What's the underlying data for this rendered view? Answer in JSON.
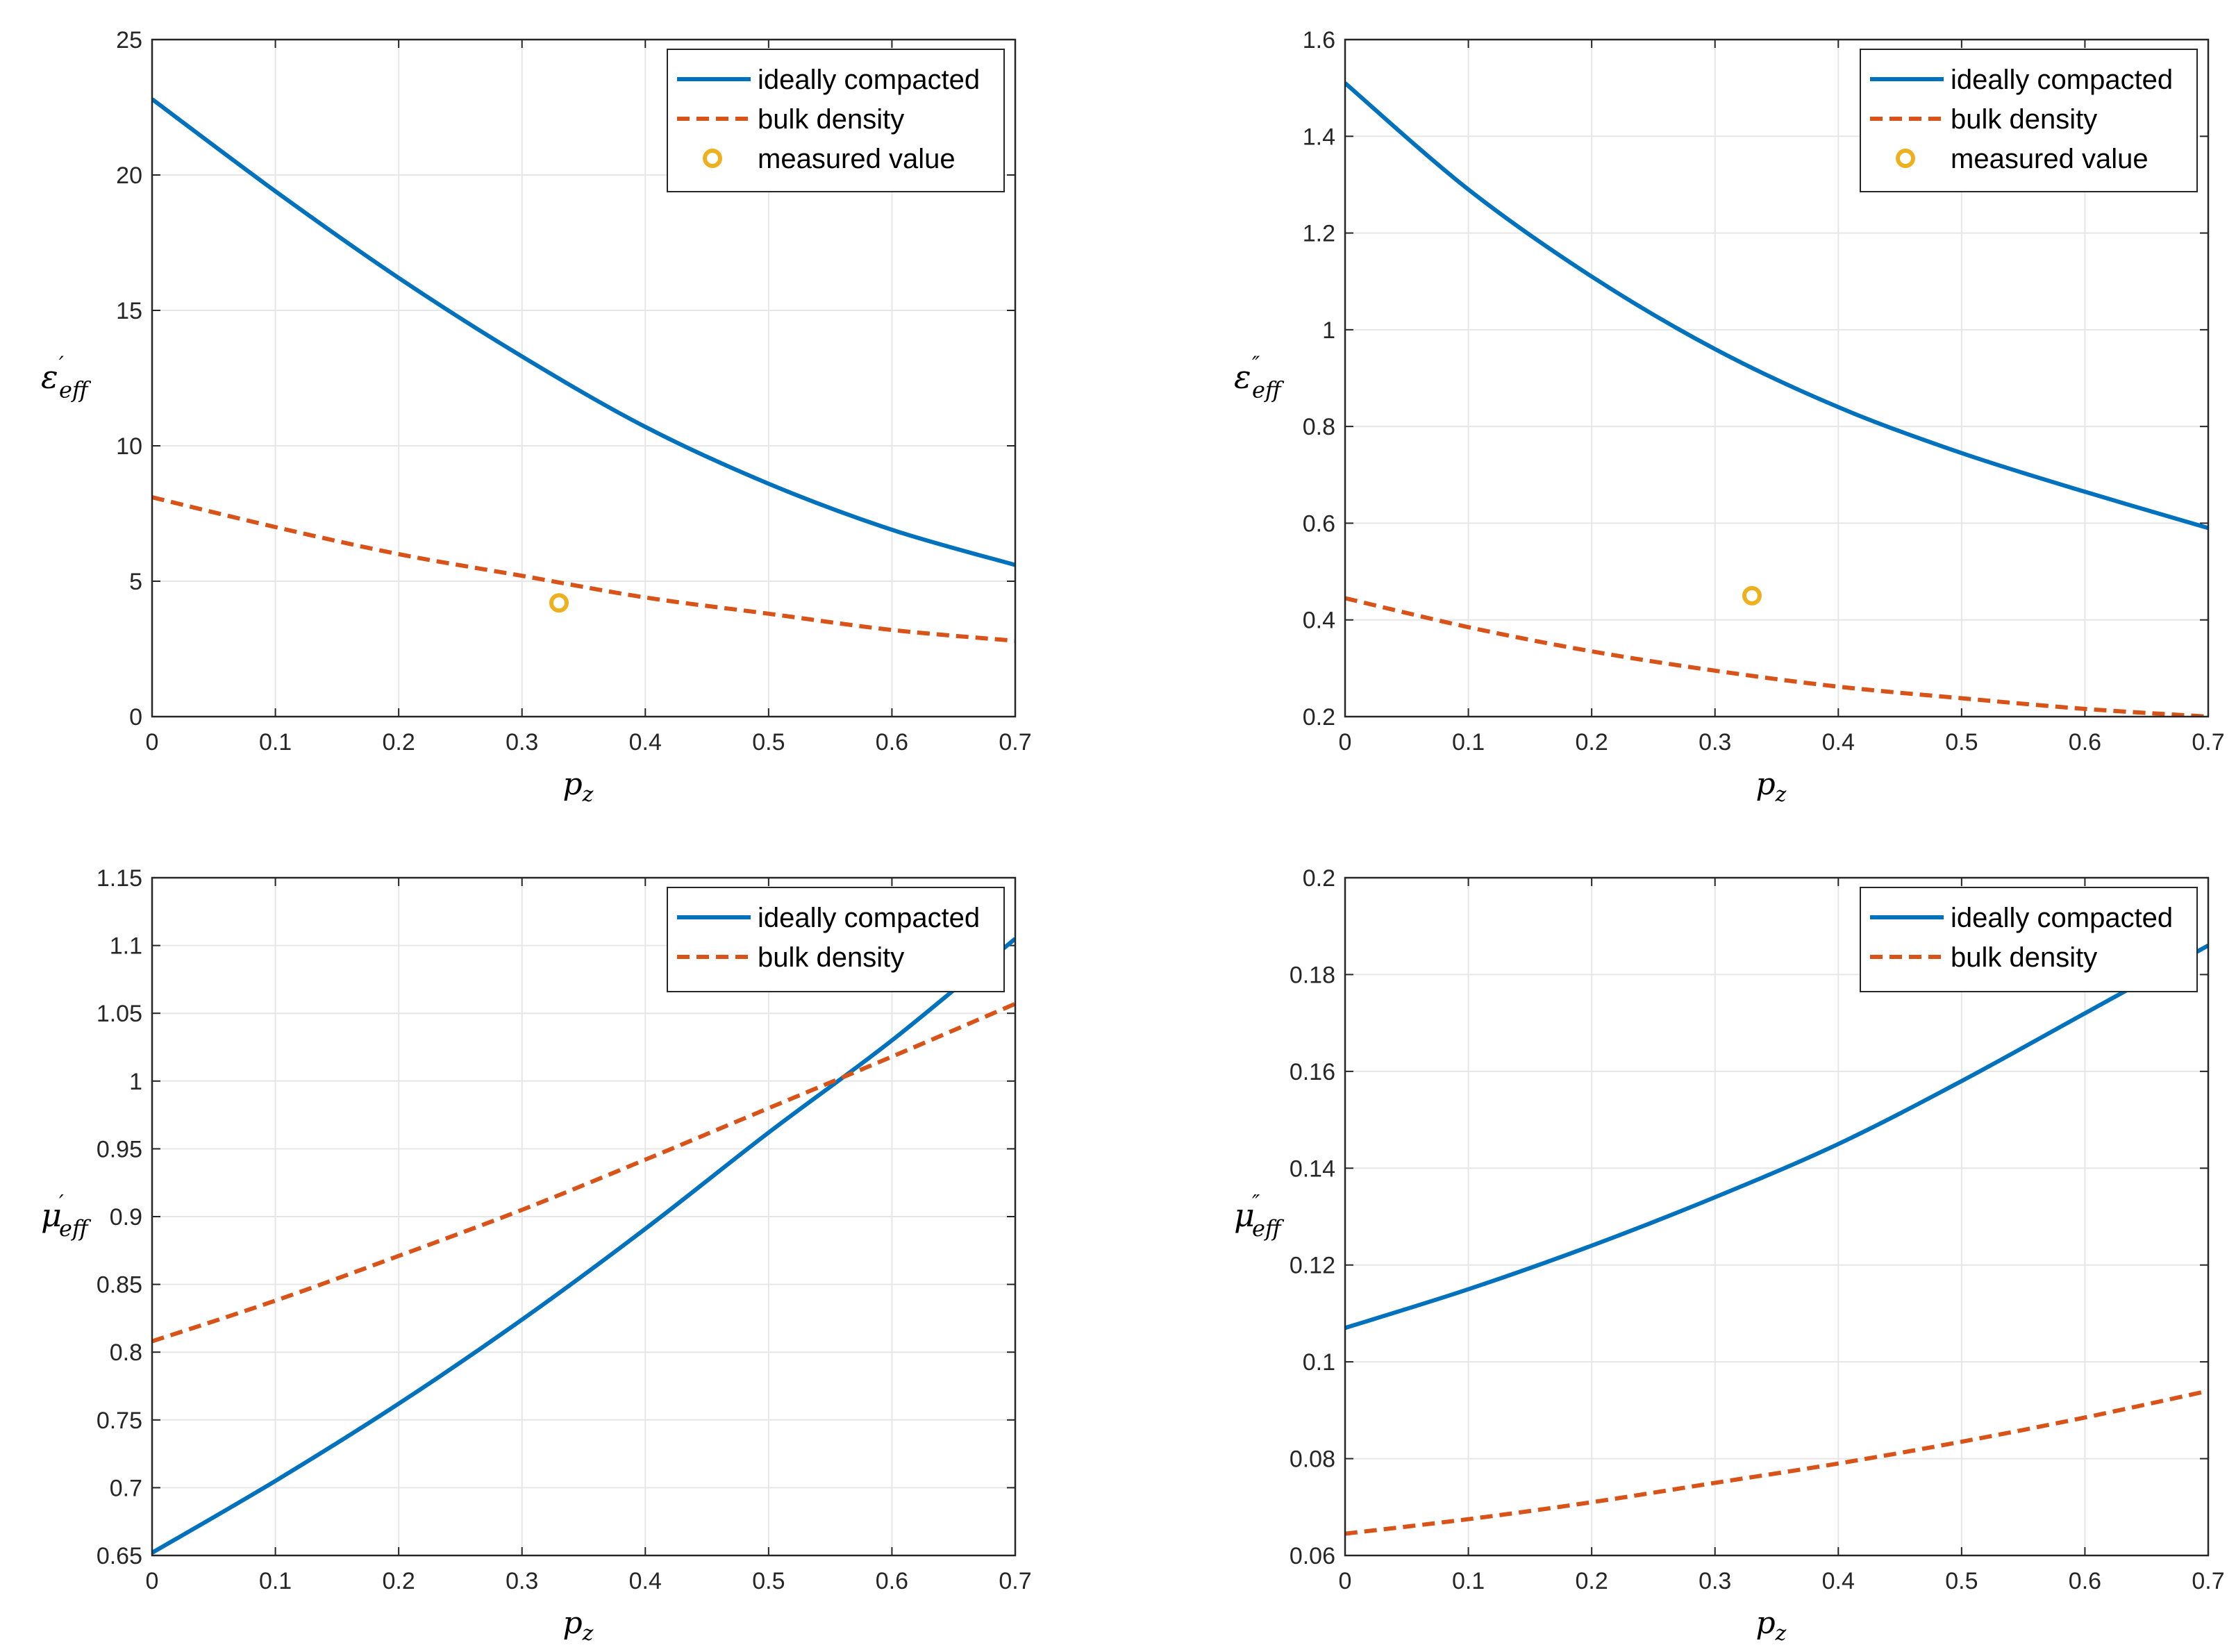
{
  "colors": {
    "series_solid": "#0072BD",
    "series_dashed": "#D95319",
    "marker": "#EDB120",
    "grid": "#e6e6e6",
    "axes": "#262626"
  },
  "chart_data": [
    {
      "type": "line",
      "xlabel": "p",
      "xlabel_sub": "z",
      "ylabel": "ε",
      "ylabel_sup": "′",
      "ylabel_sub": "eff",
      "xlim": [
        0,
        0.7
      ],
      "ylim": [
        0,
        25
      ],
      "x_ticks": [
        0,
        0.1,
        0.2,
        0.3,
        0.4,
        0.5,
        0.6,
        0.7
      ],
      "x_tick_labels": [
        "0",
        "0.1",
        "0.2",
        "0.3",
        "0.4",
        "0.5",
        "0.6",
        "0.7"
      ],
      "y_ticks": [
        0,
        5,
        10,
        15,
        20,
        25
      ],
      "y_tick_labels": [
        "0",
        "5",
        "10",
        "15",
        "20",
        "25"
      ],
      "grid": true,
      "legend_position": "top-right",
      "series": [
        {
          "name": "ideally compacted",
          "style": "solid",
          "x": [
            0,
            0.1,
            0.2,
            0.3,
            0.4,
            0.5,
            0.6,
            0.7
          ],
          "values": [
            22.8,
            19.4,
            16.2,
            13.3,
            10.7,
            8.6,
            6.9,
            5.6
          ]
        },
        {
          "name": "bulk density",
          "style": "dashed",
          "x": [
            0,
            0.1,
            0.2,
            0.3,
            0.4,
            0.5,
            0.6,
            0.7
          ],
          "values": [
            8.1,
            7.0,
            6.0,
            5.2,
            4.4,
            3.8,
            3.2,
            2.8
          ]
        }
      ],
      "points": [
        {
          "name": "measured value",
          "x": 0.33,
          "y": 4.2
        }
      ]
    },
    {
      "type": "line",
      "xlabel": "p",
      "xlabel_sub": "z",
      "ylabel": "ε",
      "ylabel_sup": "″",
      "ylabel_sub": "eff",
      "xlim": [
        0,
        0.7
      ],
      "ylim": [
        0.2,
        1.6
      ],
      "x_ticks": [
        0,
        0.1,
        0.2,
        0.3,
        0.4,
        0.5,
        0.6,
        0.7
      ],
      "x_tick_labels": [
        "0",
        "0.1",
        "0.2",
        "0.3",
        "0.4",
        "0.5",
        "0.6",
        "0.7"
      ],
      "y_ticks": [
        0.2,
        0.4,
        0.6,
        0.8,
        1.0,
        1.2,
        1.4,
        1.6
      ],
      "y_tick_labels": [
        "0.2",
        "0.4",
        "0.6",
        "0.8",
        "1",
        "1.2",
        "1.4",
        "1.6"
      ],
      "grid": true,
      "legend_position": "top-right",
      "series": [
        {
          "name": "ideally compacted",
          "style": "solid",
          "x": [
            0,
            0.1,
            0.2,
            0.3,
            0.4,
            0.5,
            0.6,
            0.7
          ],
          "values": [
            1.51,
            1.29,
            1.11,
            0.96,
            0.84,
            0.745,
            0.665,
            0.59
          ]
        },
        {
          "name": "bulk density",
          "style": "dashed",
          "x": [
            0,
            0.1,
            0.2,
            0.3,
            0.4,
            0.5,
            0.6,
            0.7
          ],
          "values": [
            0.445,
            0.385,
            0.335,
            0.295,
            0.262,
            0.238,
            0.216,
            0.2
          ]
        }
      ],
      "points": [
        {
          "name": "measured value",
          "x": 0.33,
          "y": 0.45
        }
      ]
    },
    {
      "type": "line",
      "xlabel": "p",
      "xlabel_sub": "z",
      "ylabel": "μ",
      "ylabel_sup": "′",
      "ylabel_sub": "eff",
      "xlim": [
        0,
        0.7
      ],
      "ylim": [
        0.65,
        1.15
      ],
      "x_ticks": [
        0,
        0.1,
        0.2,
        0.3,
        0.4,
        0.5,
        0.6,
        0.7
      ],
      "x_tick_labels": [
        "0",
        "0.1",
        "0.2",
        "0.3",
        "0.4",
        "0.5",
        "0.6",
        "0.7"
      ],
      "y_ticks": [
        0.65,
        0.7,
        0.75,
        0.8,
        0.85,
        0.9,
        0.95,
        1.0,
        1.05,
        1.1,
        1.15
      ],
      "y_tick_labels": [
        "0.65",
        "0.7",
        "0.75",
        "0.8",
        "0.85",
        "0.9",
        "0.95",
        "1",
        "1.05",
        "1.1",
        "1.15"
      ],
      "grid": true,
      "legend_position": "top-right",
      "series": [
        {
          "name": "ideally compacted",
          "style": "solid",
          "x": [
            0,
            0.1,
            0.2,
            0.3,
            0.4,
            0.5,
            0.6,
            0.7
          ],
          "values": [
            0.652,
            0.705,
            0.762,
            0.824,
            0.891,
            0.962,
            1.03,
            1.105
          ]
        },
        {
          "name": "bulk density",
          "style": "dashed",
          "x": [
            0,
            0.1,
            0.2,
            0.3,
            0.4,
            0.5,
            0.6,
            0.7
          ],
          "values": [
            0.808,
            0.838,
            0.871,
            0.905,
            0.942,
            0.98,
            1.018,
            1.057
          ]
        }
      ],
      "points": []
    },
    {
      "type": "line",
      "xlabel": "p",
      "xlabel_sub": "z",
      "ylabel": "μ",
      "ylabel_sup": "″",
      "ylabel_sub": "eff",
      "xlim": [
        0,
        0.7
      ],
      "ylim": [
        0.06,
        0.2
      ],
      "x_ticks": [
        0,
        0.1,
        0.2,
        0.3,
        0.4,
        0.5,
        0.6,
        0.7
      ],
      "x_tick_labels": [
        "0",
        "0.1",
        "0.2",
        "0.3",
        "0.4",
        "0.5",
        "0.6",
        "0.7"
      ],
      "y_ticks": [
        0.06,
        0.08,
        0.1,
        0.12,
        0.14,
        0.16,
        0.18,
        0.2
      ],
      "y_tick_labels": [
        "0.06",
        "0.08",
        "0.1",
        "0.12",
        "0.14",
        "0.16",
        "0.18",
        "0.2"
      ],
      "grid": true,
      "legend_position": "top-right",
      "series": [
        {
          "name": "ideally compacted",
          "style": "solid",
          "x": [
            0,
            0.1,
            0.2,
            0.3,
            0.4,
            0.5,
            0.6,
            0.7
          ],
          "values": [
            0.107,
            0.115,
            0.124,
            0.134,
            0.145,
            0.158,
            0.172,
            0.186
          ]
        },
        {
          "name": "bulk density",
          "style": "dashed",
          "x": [
            0,
            0.1,
            0.2,
            0.3,
            0.4,
            0.5,
            0.6,
            0.7
          ],
          "values": [
            0.0645,
            0.0675,
            0.071,
            0.075,
            0.079,
            0.0835,
            0.0885,
            0.094
          ]
        }
      ],
      "points": []
    }
  ]
}
